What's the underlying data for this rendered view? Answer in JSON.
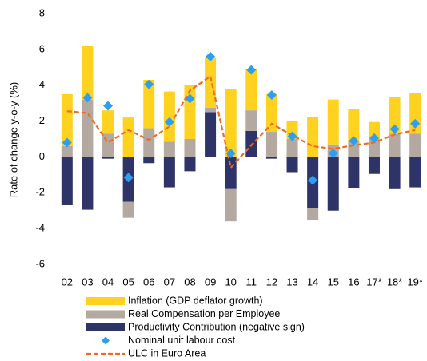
{
  "chart_data": {
    "type": "bar",
    "y_label": "Rate of change y-o-y (%)",
    "categories": [
      "02",
      "03",
      "04",
      "05",
      "06",
      "07",
      "08",
      "09",
      "10",
      "11",
      "12",
      "13",
      "14",
      "15",
      "16",
      "17*",
      "18*",
      "19*"
    ],
    "ylim": [
      -6,
      8
    ],
    "yticks": [
      -6,
      -4,
      -2,
      0,
      2,
      4,
      6,
      8
    ],
    "series": [
      {
        "name": "Inflation (GDP deflator growth)",
        "color": "#ffd21f",
        "kind": "bar",
        "values": [
          2.9,
          3.0,
          1.3,
          2.2,
          2.7,
          2.8,
          3.0,
          2.75,
          3.8,
          2.3,
          2.1,
          1.0,
          2.25,
          2.5,
          1.75,
          0.95,
          2.05,
          2.25
        ]
      },
      {
        "name": "Real Compensation per Employee",
        "color": "#b3a9a0",
        "kind": "bar",
        "values": [
          0.6,
          3.2,
          1.3,
          -0.9,
          1.6,
          0.85,
          1.0,
          0.25,
          -1.8,
          1.15,
          1.4,
          1.0,
          -0.7,
          0.7,
          0.9,
          1.0,
          1.3,
          1.3
        ]
      },
      {
        "name": "Productivity Contribution (negative sign)",
        "color": "#2e3368",
        "kind": "bar",
        "values": [
          -2.7,
          -2.95,
          -0.1,
          -2.5,
          -0.35,
          -1.7,
          -0.8,
          2.5,
          -1.8,
          1.45,
          -0.1,
          -0.85,
          -2.85,
          -3.0,
          -1.75,
          -0.95,
          -1.8,
          -1.7
        ]
      },
      {
        "name": "Nominal unit labour cost",
        "color": "#2e9ef0",
        "kind": "marker",
        "values": [
          0.8,
          3.3,
          2.85,
          -1.15,
          4.05,
          1.95,
          3.25,
          5.6,
          0.2,
          4.85,
          3.45,
          1.15,
          -1.3,
          0.2,
          0.9,
          1.05,
          1.55,
          1.85
        ]
      },
      {
        "name": "ULC in Euro Area",
        "color": "#f26b1d",
        "kind": "line",
        "values": [
          2.55,
          2.45,
          0.8,
          1.5,
          0.95,
          1.7,
          3.7,
          4.5,
          -0.6,
          0.65,
          1.85,
          1.2,
          0.6,
          0.45,
          0.65,
          0.8,
          1.25,
          1.5
        ]
      }
    ]
  }
}
